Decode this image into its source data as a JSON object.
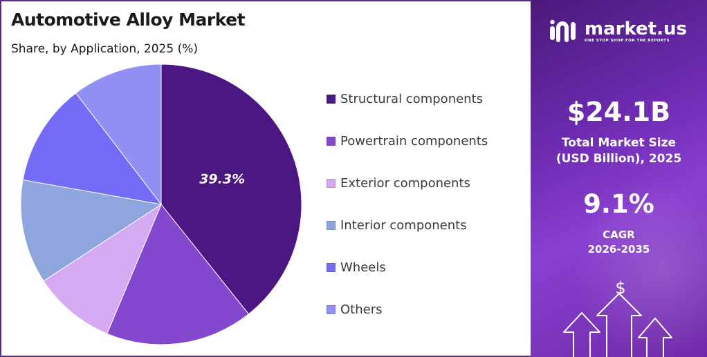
{
  "title": "Automotive Alloy Market",
  "subtitle": "Share, by Application, 2025 (%)",
  "chart_data": {
    "type": "pie",
    "title": "Automotive Alloy Market",
    "subtitle": "Share, by Application, 2025 (%)",
    "legend_position": "right",
    "slices": [
      {
        "name": "Structural components",
        "value": 39.3,
        "color": "#4b1782",
        "label": "39.3%"
      },
      {
        "name": "Powertrain components",
        "value": 17.0,
        "color": "#8448cf",
        "label": ""
      },
      {
        "name": "Exterior components",
        "value": 9.5,
        "color": "#d6aaf2",
        "label": ""
      },
      {
        "name": "Interior components",
        "value": 12.0,
        "color": "#8ea5dd",
        "label": ""
      },
      {
        "name": "Wheels",
        "value": 11.8,
        "color": "#746cf7",
        "label": ""
      },
      {
        "name": "Others",
        "value": 10.4,
        "color": "#9090f4",
        "label": ""
      }
    ]
  },
  "legend": [
    {
      "label": "Structural components",
      "color": "#4b1782"
    },
    {
      "label": "Powertrain components",
      "color": "#8448cf"
    },
    {
      "label": "Exterior components",
      "color": "#d6aaf2"
    },
    {
      "label": "Interior components",
      "color": "#8ea5dd"
    },
    {
      "label": "Wheels",
      "color": "#746cf7"
    },
    {
      "label": "Others",
      "color": "#9090f4"
    }
  ],
  "brand": {
    "name": "market.us",
    "tagline": "ONE STOP SHOP FOR THE REPORTS"
  },
  "stats": {
    "market_size": "$24.1B",
    "market_size_label_line1": "Total Market Size",
    "market_size_label_line2": "(USD Billion), 2025",
    "cagr": "9.1%",
    "cagr_label_line1": "CAGR",
    "cagr_label_line2": "2026-2035",
    "currency_symbol": "$"
  },
  "colors": {
    "panel_border": "#5b2a86",
    "accent_dark": "#4a1a7a",
    "accent_light": "#8a3fd0"
  }
}
